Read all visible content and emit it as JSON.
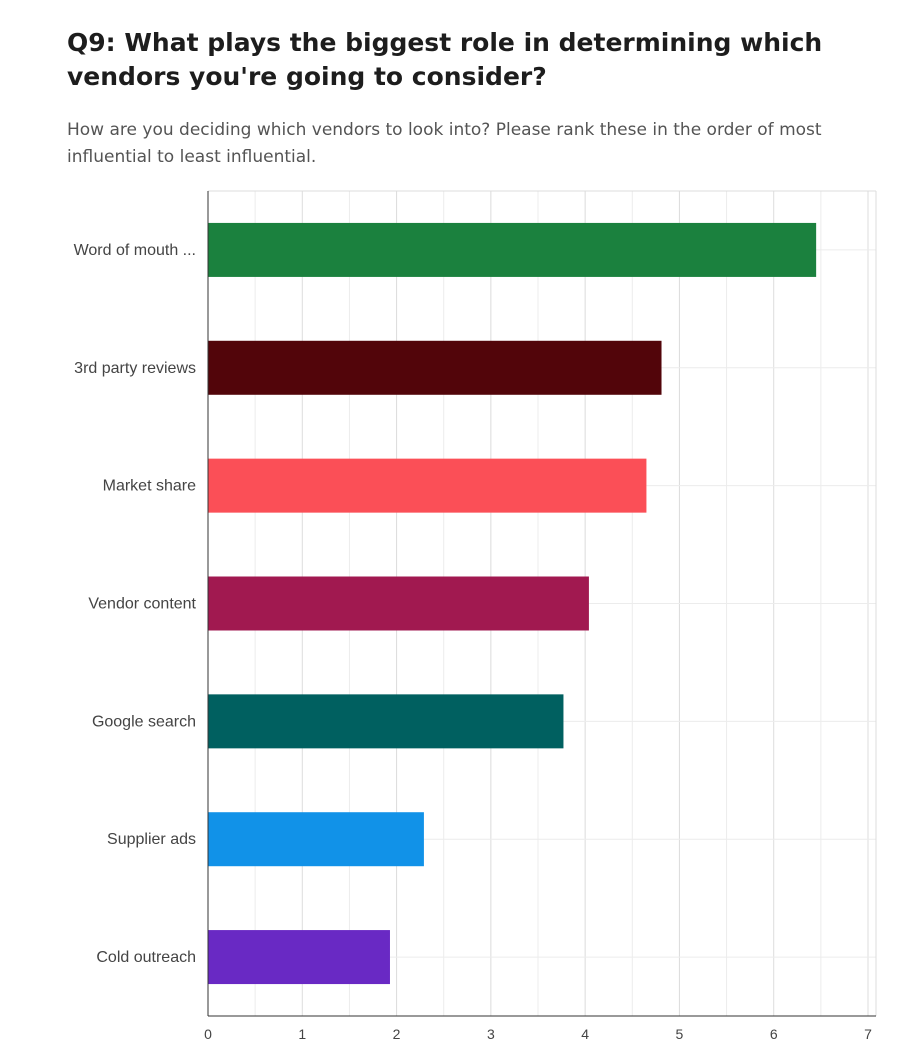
{
  "question": {
    "title": "Q9: What plays the biggest role in determining which vendors you're going to consider?",
    "subtitle": "How are you deciding which vendors to look into? Please rank these in the order of most influential to least influential."
  },
  "chart_data": {
    "type": "bar",
    "orientation": "horizontal",
    "categories": [
      "Word of mouth ...",
      "3rd party reviews",
      "Market share",
      "Vendor content",
      "Google search",
      "Supplier ads",
      "Cold outreach"
    ],
    "values": [
      6.45,
      4.81,
      4.65,
      4.04,
      3.77,
      2.29,
      1.93
    ],
    "colors": [
      "#1b813e",
      "#52050a",
      "#fb4f57",
      "#a11950",
      "#006060",
      "#1192e8",
      "#6929c4"
    ],
    "xlim": [
      0,
      7
    ],
    "xticks": [
      "0",
      "1",
      "2",
      "3",
      "4",
      "5",
      "6",
      "7"
    ],
    "grid": true
  }
}
